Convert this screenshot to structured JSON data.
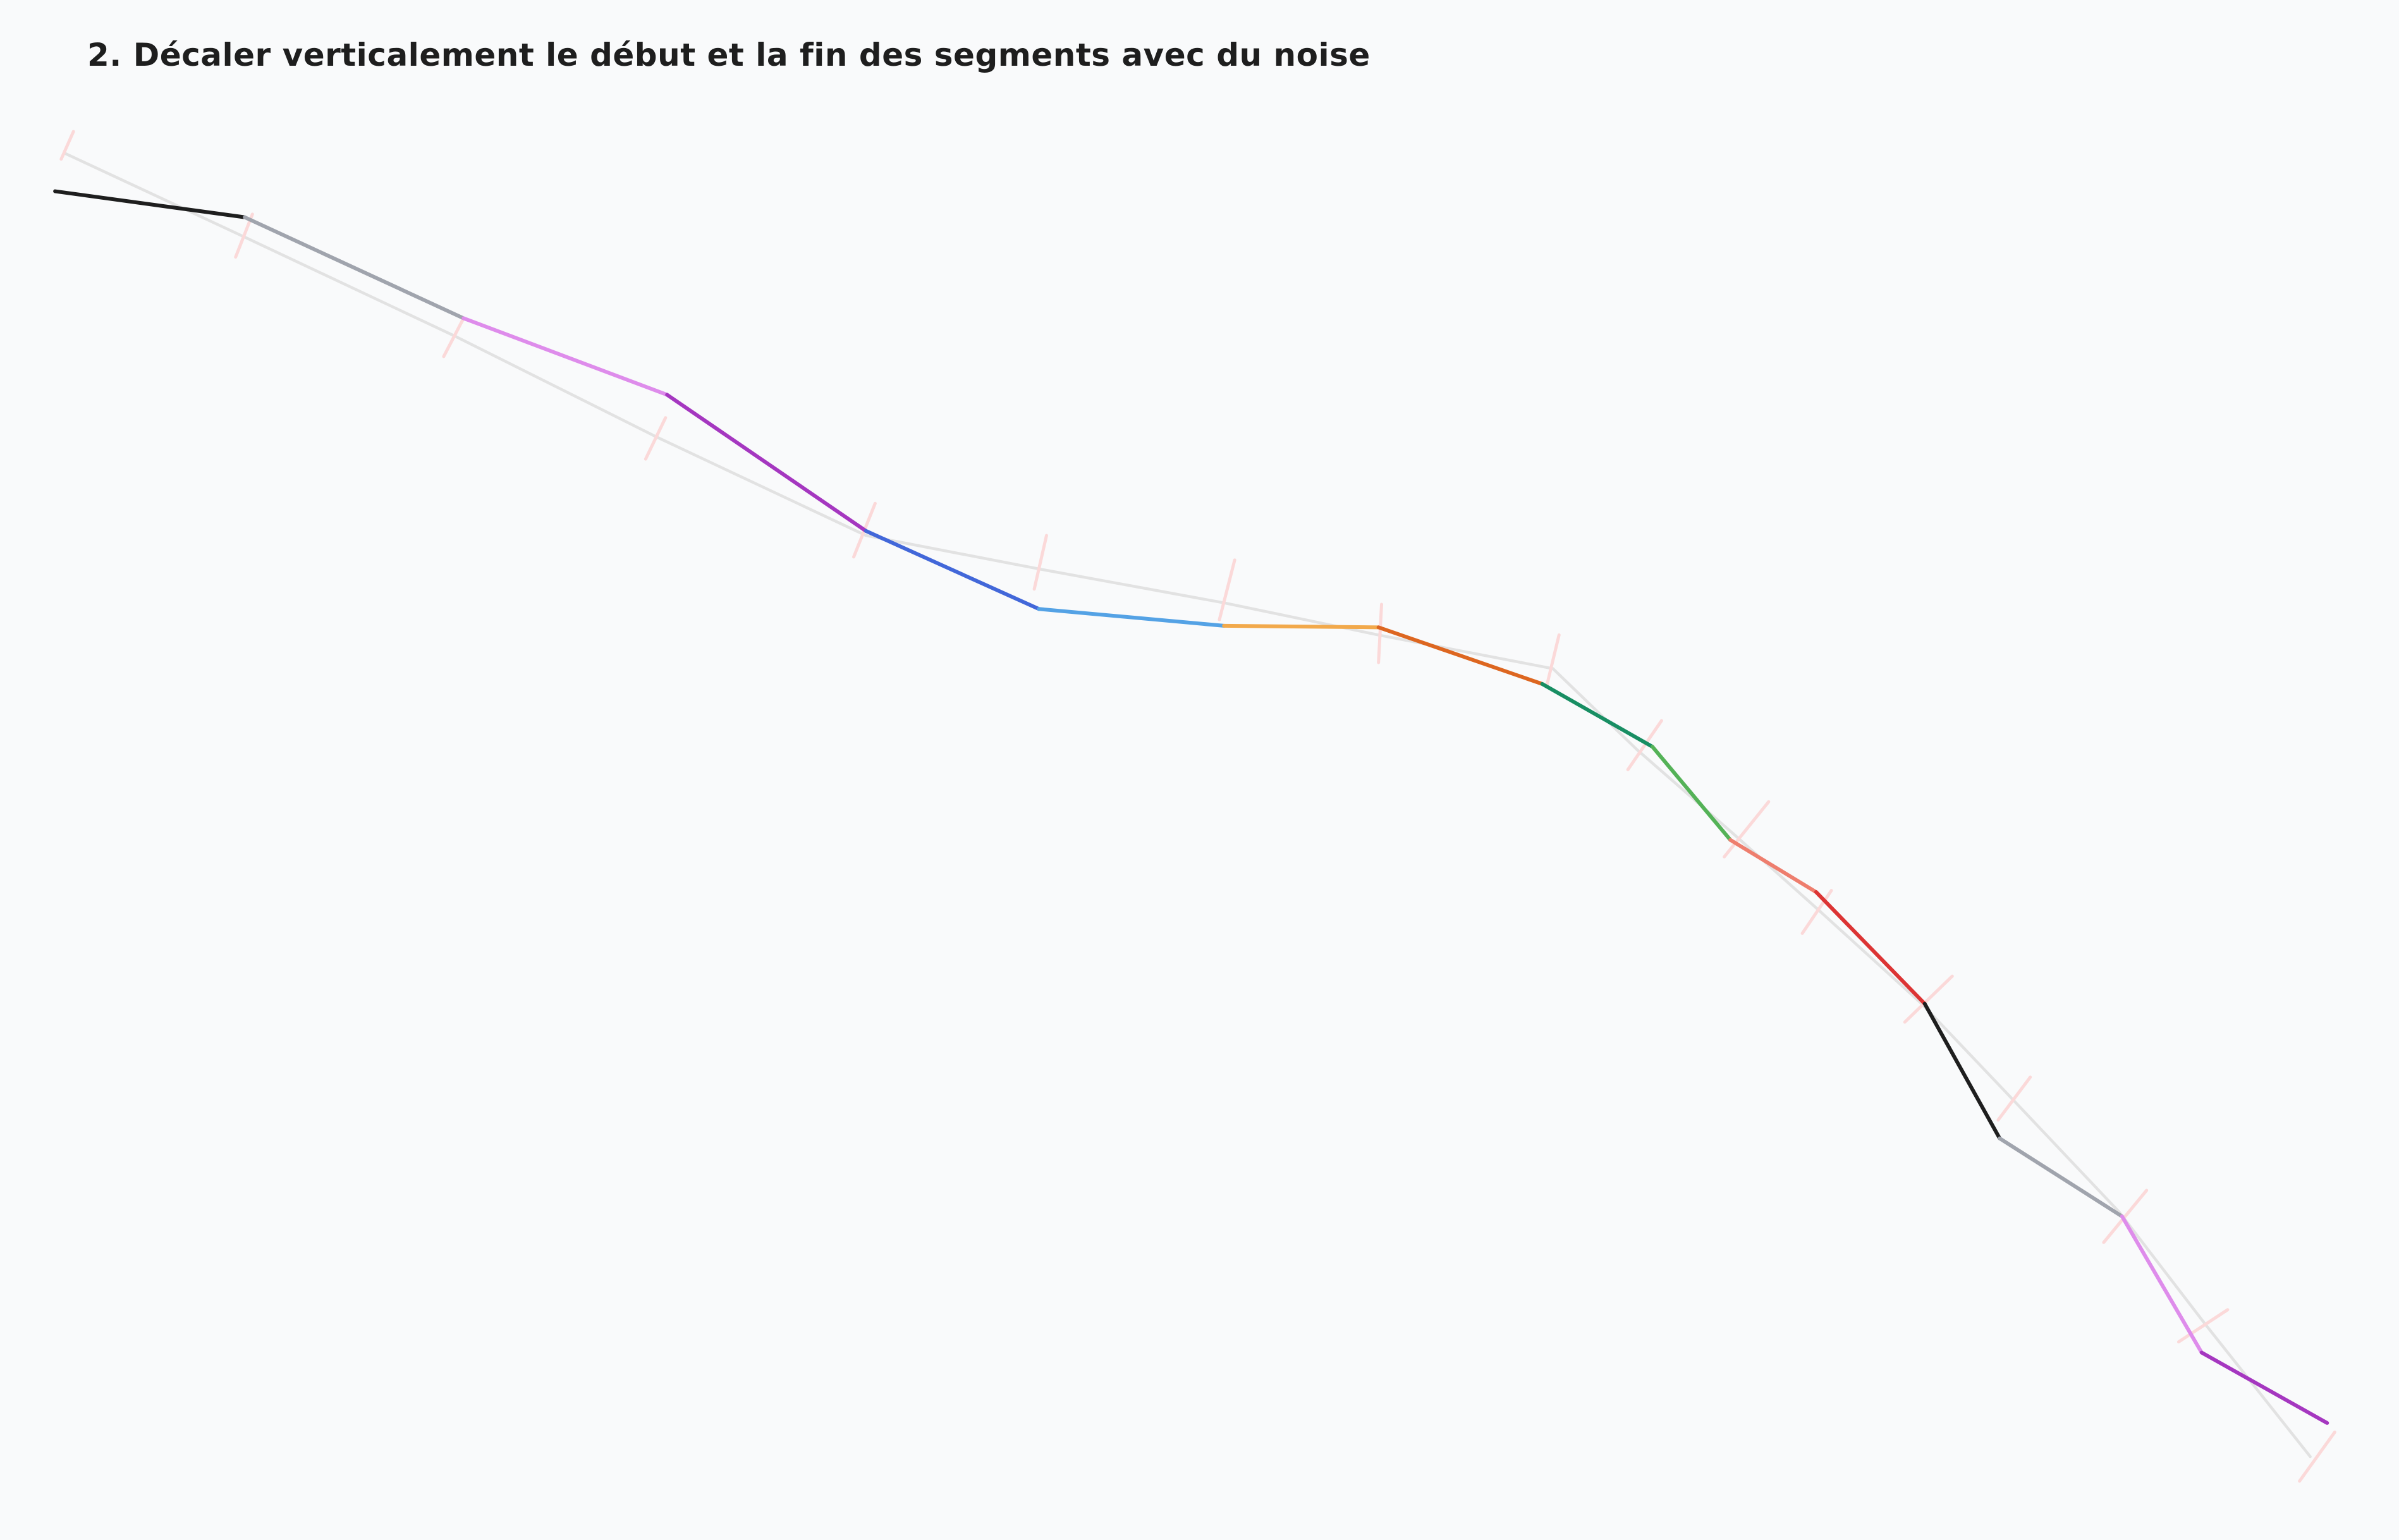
{
  "title": "2. Décaler verticalement le début et la fin des segments avec du noise",
  "colors": {
    "background": "#f9fafb",
    "baseline": "#e2e2e2",
    "ticks": "#fbd9d9",
    "segments": [
      "#1e1e1e",
      "#a0a4ad",
      "#de8ceb",
      "#a537c0",
      "#4267d9",
      "#54a2e5",
      "#f2a94b",
      "#dd6620",
      "#188e63",
      "#54b257",
      "#ee7e6e",
      "#dc3434",
      "#1e1e1e",
      "#a0a4ad",
      "#de8ceb",
      "#a537c0"
    ]
  }
}
